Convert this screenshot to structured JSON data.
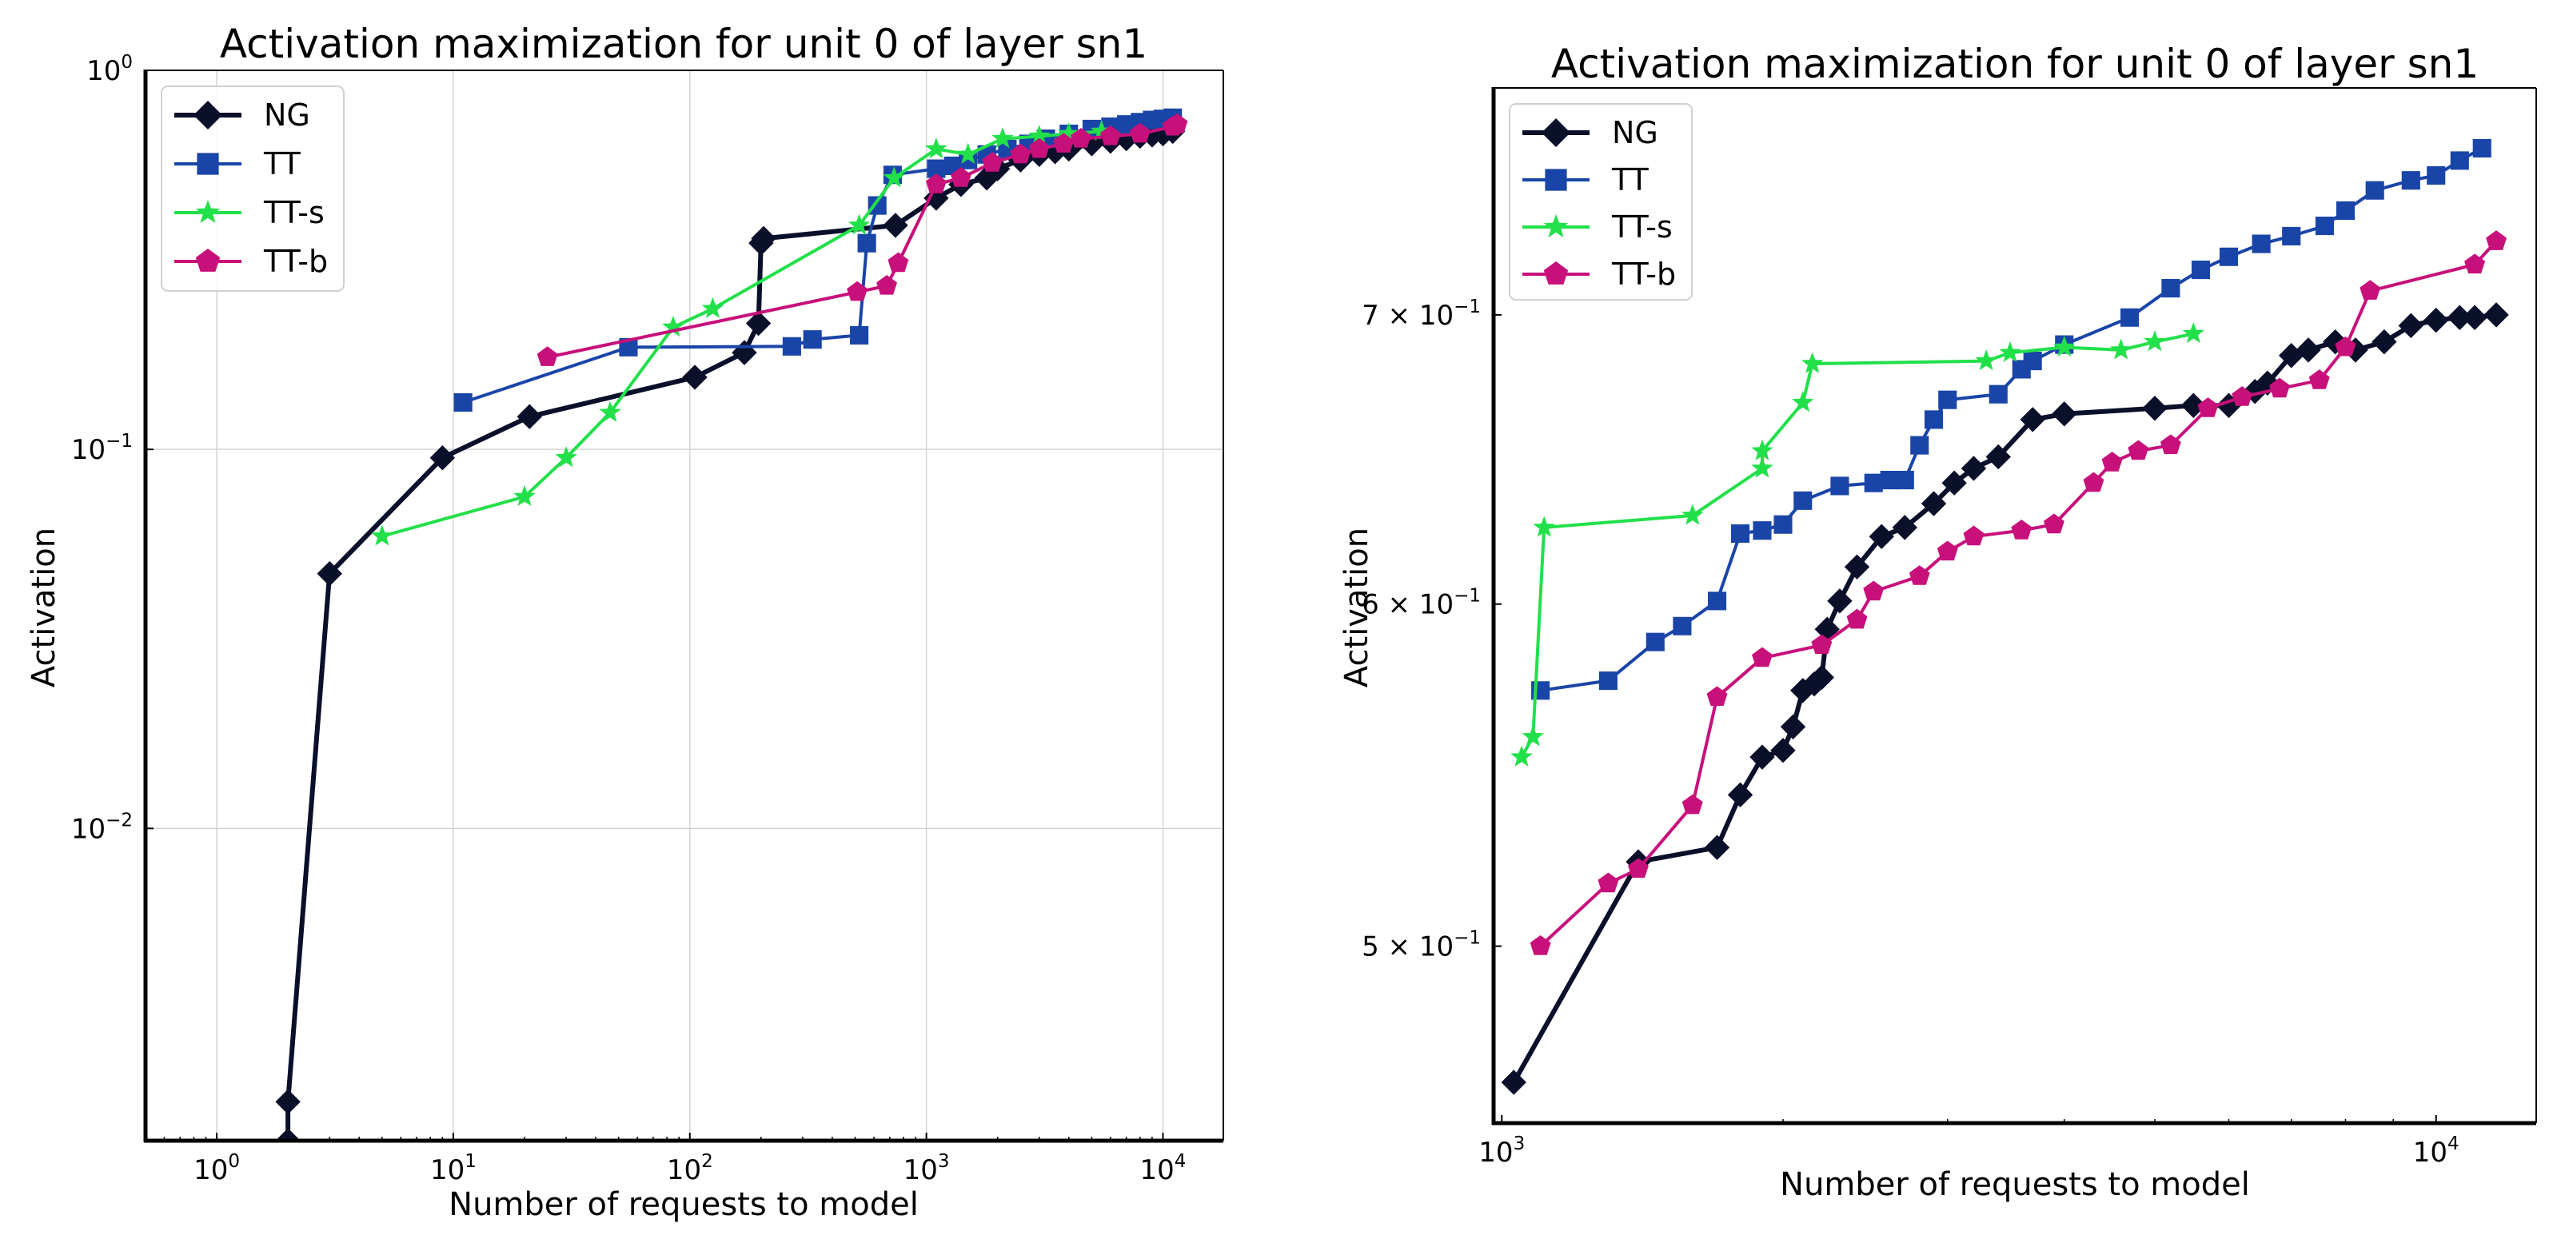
{
  "colors": {
    "NG": "#0a0f2a",
    "TT": "#1a45a8",
    "TT-s": "#22e04a",
    "TT-b": "#c8107a"
  },
  "chart_data": [
    {
      "type": "line",
      "title": "Activation maximization for unit 0 of layer sn1",
      "xlabel": "Number of requests to model",
      "ylabel": "Activation",
      "xscale": "log",
      "yscale": "log",
      "xlim": [
        0.5,
        18000
      ],
      "ylim": [
        0.0015,
        1.0
      ],
      "grid": true,
      "legend": "top-left",
      "xticks": [
        {
          "base": "10",
          "exp": "0",
          "value": 1
        },
        {
          "base": "10",
          "exp": "1",
          "value": 10
        },
        {
          "base": "10",
          "exp": "2",
          "value": 100
        },
        {
          "base": "10",
          "exp": "3",
          "value": 1000
        },
        {
          "base": "10",
          "exp": "4",
          "value": 10000
        }
      ],
      "yticks": [
        {
          "base": "10",
          "exp": "0",
          "value": 1.0
        },
        {
          "base": "10",
          "exp": "−1",
          "value": 0.1
        },
        {
          "base": "10",
          "exp": "−2",
          "value": 0.01
        }
      ],
      "series": [
        {
          "name": "NG",
          "marker": "diamond",
          "linewidth": 6,
          "points": [
            [
              2,
              0.0015
            ],
            [
              2,
              0.0019
            ],
            [
              3,
              0.047
            ],
            [
              9,
              0.095
            ],
            [
              21,
              0.122
            ],
            [
              105,
              0.155
            ],
            [
              170,
              0.18
            ],
            [
              195,
              0.215
            ],
            [
              200,
              0.35
            ],
            [
              205,
              0.36
            ],
            [
              740,
              0.39
            ],
            [
              1100,
              0.46
            ],
            [
              1400,
              0.5
            ],
            [
              1800,
              0.52
            ],
            [
              2000,
              0.55
            ],
            [
              2500,
              0.58
            ],
            [
              3000,
              0.6
            ],
            [
              3500,
              0.61
            ],
            [
              4000,
              0.62
            ],
            [
              5000,
              0.64
            ],
            [
              6000,
              0.65
            ],
            [
              7000,
              0.66
            ],
            [
              8000,
              0.67
            ],
            [
              9000,
              0.675
            ],
            [
              10000,
              0.68
            ],
            [
              11000,
              0.69
            ]
          ]
        },
        {
          "name": "TT",
          "marker": "square",
          "linewidth": 4,
          "points": [
            [
              11,
              0.133
            ],
            [
              55,
              0.186
            ],
            [
              270,
              0.187
            ],
            [
              330,
              0.195
            ],
            [
              520,
              0.2
            ],
            [
              560,
              0.35
            ],
            [
              620,
              0.44
            ],
            [
              720,
              0.53
            ],
            [
              1100,
              0.55
            ],
            [
              1300,
              0.56
            ],
            [
              1500,
              0.58
            ],
            [
              1800,
              0.6
            ],
            [
              2200,
              0.62
            ],
            [
              2700,
              0.64
            ],
            [
              3200,
              0.66
            ],
            [
              4000,
              0.68
            ],
            [
              5000,
              0.7
            ],
            [
              6000,
              0.71
            ],
            [
              7000,
              0.72
            ],
            [
              8000,
              0.73
            ],
            [
              9000,
              0.74
            ],
            [
              10000,
              0.745
            ],
            [
              11000,
              0.75
            ]
          ]
        },
        {
          "name": "TT-s",
          "marker": "star",
          "linewidth": 4,
          "points": [
            [
              5,
              0.059
            ],
            [
              20,
              0.075
            ],
            [
              30,
              0.095
            ],
            [
              46,
              0.125
            ],
            [
              85,
              0.21
            ],
            [
              125,
              0.235
            ],
            [
              520,
              0.39
            ],
            [
              730,
              0.52
            ],
            [
              1100,
              0.62
            ],
            [
              1500,
              0.6
            ],
            [
              2100,
              0.66
            ],
            [
              3000,
              0.67
            ],
            [
              4000,
              0.68
            ],
            [
              5500,
              0.69
            ]
          ]
        },
        {
          "name": "TT-b",
          "marker": "pentagon",
          "linewidth": 4,
          "points": [
            [
              25,
              0.175
            ],
            [
              510,
              0.26
            ],
            [
              680,
              0.27
            ],
            [
              760,
              0.31
            ],
            [
              1100,
              0.5
            ],
            [
              1400,
              0.52
            ],
            [
              1900,
              0.57
            ],
            [
              2500,
              0.6
            ],
            [
              3000,
              0.62
            ],
            [
              3800,
              0.64
            ],
            [
              4500,
              0.66
            ],
            [
              6000,
              0.67
            ],
            [
              8000,
              0.68
            ],
            [
              11000,
              0.71
            ],
            [
              11500,
              0.72
            ]
          ]
        }
      ]
    },
    {
      "type": "line",
      "title": "Activation maximization for unit 0 of layer sn1",
      "xlabel": "Number of requests to model",
      "ylabel": "Activation",
      "xscale": "log",
      "yscale": "log",
      "xlim": [
        980,
        12800
      ],
      "ylim": [
        0.455,
        0.79
      ],
      "grid": false,
      "legend": "top-left",
      "xticks": [
        {
          "base": "10",
          "exp": "3",
          "value": 1000
        },
        {
          "base": "10",
          "exp": "4",
          "value": 10000
        }
      ],
      "yticks": [
        {
          "mant": "7",
          "base": "10",
          "exp": "−1",
          "value": 0.7
        },
        {
          "mant": "6",
          "base": "10",
          "exp": "−1",
          "value": 0.6
        },
        {
          "mant": "5",
          "base": "10",
          "exp": "−1",
          "value": 0.5
        }
      ],
      "series": [
        {
          "name": "NG",
          "marker": "diamond",
          "linewidth": 6,
          "points": [
            [
              1030,
              0.465
            ],
            [
              1400,
              0.523
            ],
            [
              1700,
              0.527
            ],
            [
              1800,
              0.542
            ],
            [
              1900,
              0.553
            ],
            [
              2000,
              0.555
            ],
            [
              2050,
              0.562
            ],
            [
              2100,
              0.573
            ],
            [
              2160,
              0.575
            ],
            [
              2200,
              0.577
            ],
            [
              2230,
              0.592
            ],
            [
              2300,
              0.601
            ],
            [
              2400,
              0.612
            ],
            [
              2550,
              0.622
            ],
            [
              2700,
              0.625
            ],
            [
              2900,
              0.633
            ],
            [
              3050,
              0.64
            ],
            [
              3200,
              0.645
            ],
            [
              3400,
              0.649
            ],
            [
              3700,
              0.662
            ],
            [
              4000,
              0.664
            ],
            [
              5000,
              0.666
            ],
            [
              5500,
              0.667
            ],
            [
              6000,
              0.667
            ],
            [
              6400,
              0.672
            ],
            [
              6600,
              0.675
            ],
            [
              7000,
              0.685
            ],
            [
              7300,
              0.687
            ],
            [
              7800,
              0.69
            ],
            [
              8200,
              0.687
            ],
            [
              8800,
              0.69
            ],
            [
              9400,
              0.696
            ],
            [
              10000,
              0.698
            ],
            [
              10600,
              0.699
            ],
            [
              11000,
              0.699
            ],
            [
              11600,
              0.7
            ]
          ]
        },
        {
          "name": "TT",
          "marker": "square",
          "linewidth": 4,
          "points": [
            [
              1100,
              0.573
            ],
            [
              1300,
              0.576
            ],
            [
              1460,
              0.588
            ],
            [
              1560,
              0.593
            ],
            [
              1700,
              0.601
            ],
            [
              1800,
              0.623
            ],
            [
              1900,
              0.624
            ],
            [
              2000,
              0.626
            ],
            [
              2100,
              0.634
            ],
            [
              2300,
              0.639
            ],
            [
              2500,
              0.64
            ],
            [
              2600,
              0.641
            ],
            [
              2700,
              0.641
            ],
            [
              2800,
              0.653
            ],
            [
              2900,
              0.662
            ],
            [
              3000,
              0.669
            ],
            [
              3400,
              0.671
            ],
            [
              3600,
              0.68
            ],
            [
              3700,
              0.683
            ],
            [
              4000,
              0.689
            ],
            [
              4700,
              0.699
            ],
            [
              5200,
              0.71
            ],
            [
              5600,
              0.717
            ],
            [
              6000,
              0.722
            ],
            [
              6500,
              0.727
            ],
            [
              7000,
              0.73
            ],
            [
              7600,
              0.734
            ],
            [
              8000,
              0.74
            ],
            [
              8600,
              0.748
            ],
            [
              9400,
              0.752
            ],
            [
              10000,
              0.754
            ],
            [
              10600,
              0.76
            ],
            [
              11200,
              0.765
            ]
          ]
        },
        {
          "name": "TT-s",
          "marker": "star",
          "linewidth": 4,
          "points": [
            [
              1050,
              0.553
            ],
            [
              1080,
              0.559
            ],
            [
              1110,
              0.625
            ],
            [
              1600,
              0.629
            ],
            [
              1900,
              0.645
            ],
            [
              1900,
              0.651
            ],
            [
              2100,
              0.668
            ],
            [
              2150,
              0.682
            ],
            [
              3300,
              0.683
            ],
            [
              3500,
              0.686
            ],
            [
              4000,
              0.688
            ],
            [
              4600,
              0.687
            ],
            [
              5000,
              0.69
            ],
            [
              5500,
              0.693
            ]
          ]
        },
        {
          "name": "TT-b",
          "marker": "pentagon",
          "linewidth": 4,
          "points": [
            [
              1100,
              0.5
            ],
            [
              1300,
              0.517
            ],
            [
              1400,
              0.521
            ],
            [
              1600,
              0.539
            ],
            [
              1700,
              0.571
            ],
            [
              1900,
              0.583
            ],
            [
              2200,
              0.587
            ],
            [
              2400,
              0.595
            ],
            [
              2500,
              0.604
            ],
            [
              2800,
              0.609
            ],
            [
              3000,
              0.617
            ],
            [
              3200,
              0.622
            ],
            [
              3600,
              0.624
            ],
            [
              3900,
              0.626
            ],
            [
              4300,
              0.64
            ],
            [
              4500,
              0.647
            ],
            [
              4800,
              0.651
            ],
            [
              5200,
              0.653
            ],
            [
              5700,
              0.666
            ],
            [
              6200,
              0.67
            ],
            [
              6800,
              0.673
            ],
            [
              7500,
              0.676
            ],
            [
              8000,
              0.688
            ],
            [
              8500,
              0.709
            ],
            [
              11000,
              0.719
            ],
            [
              11600,
              0.728
            ]
          ]
        }
      ]
    }
  ]
}
